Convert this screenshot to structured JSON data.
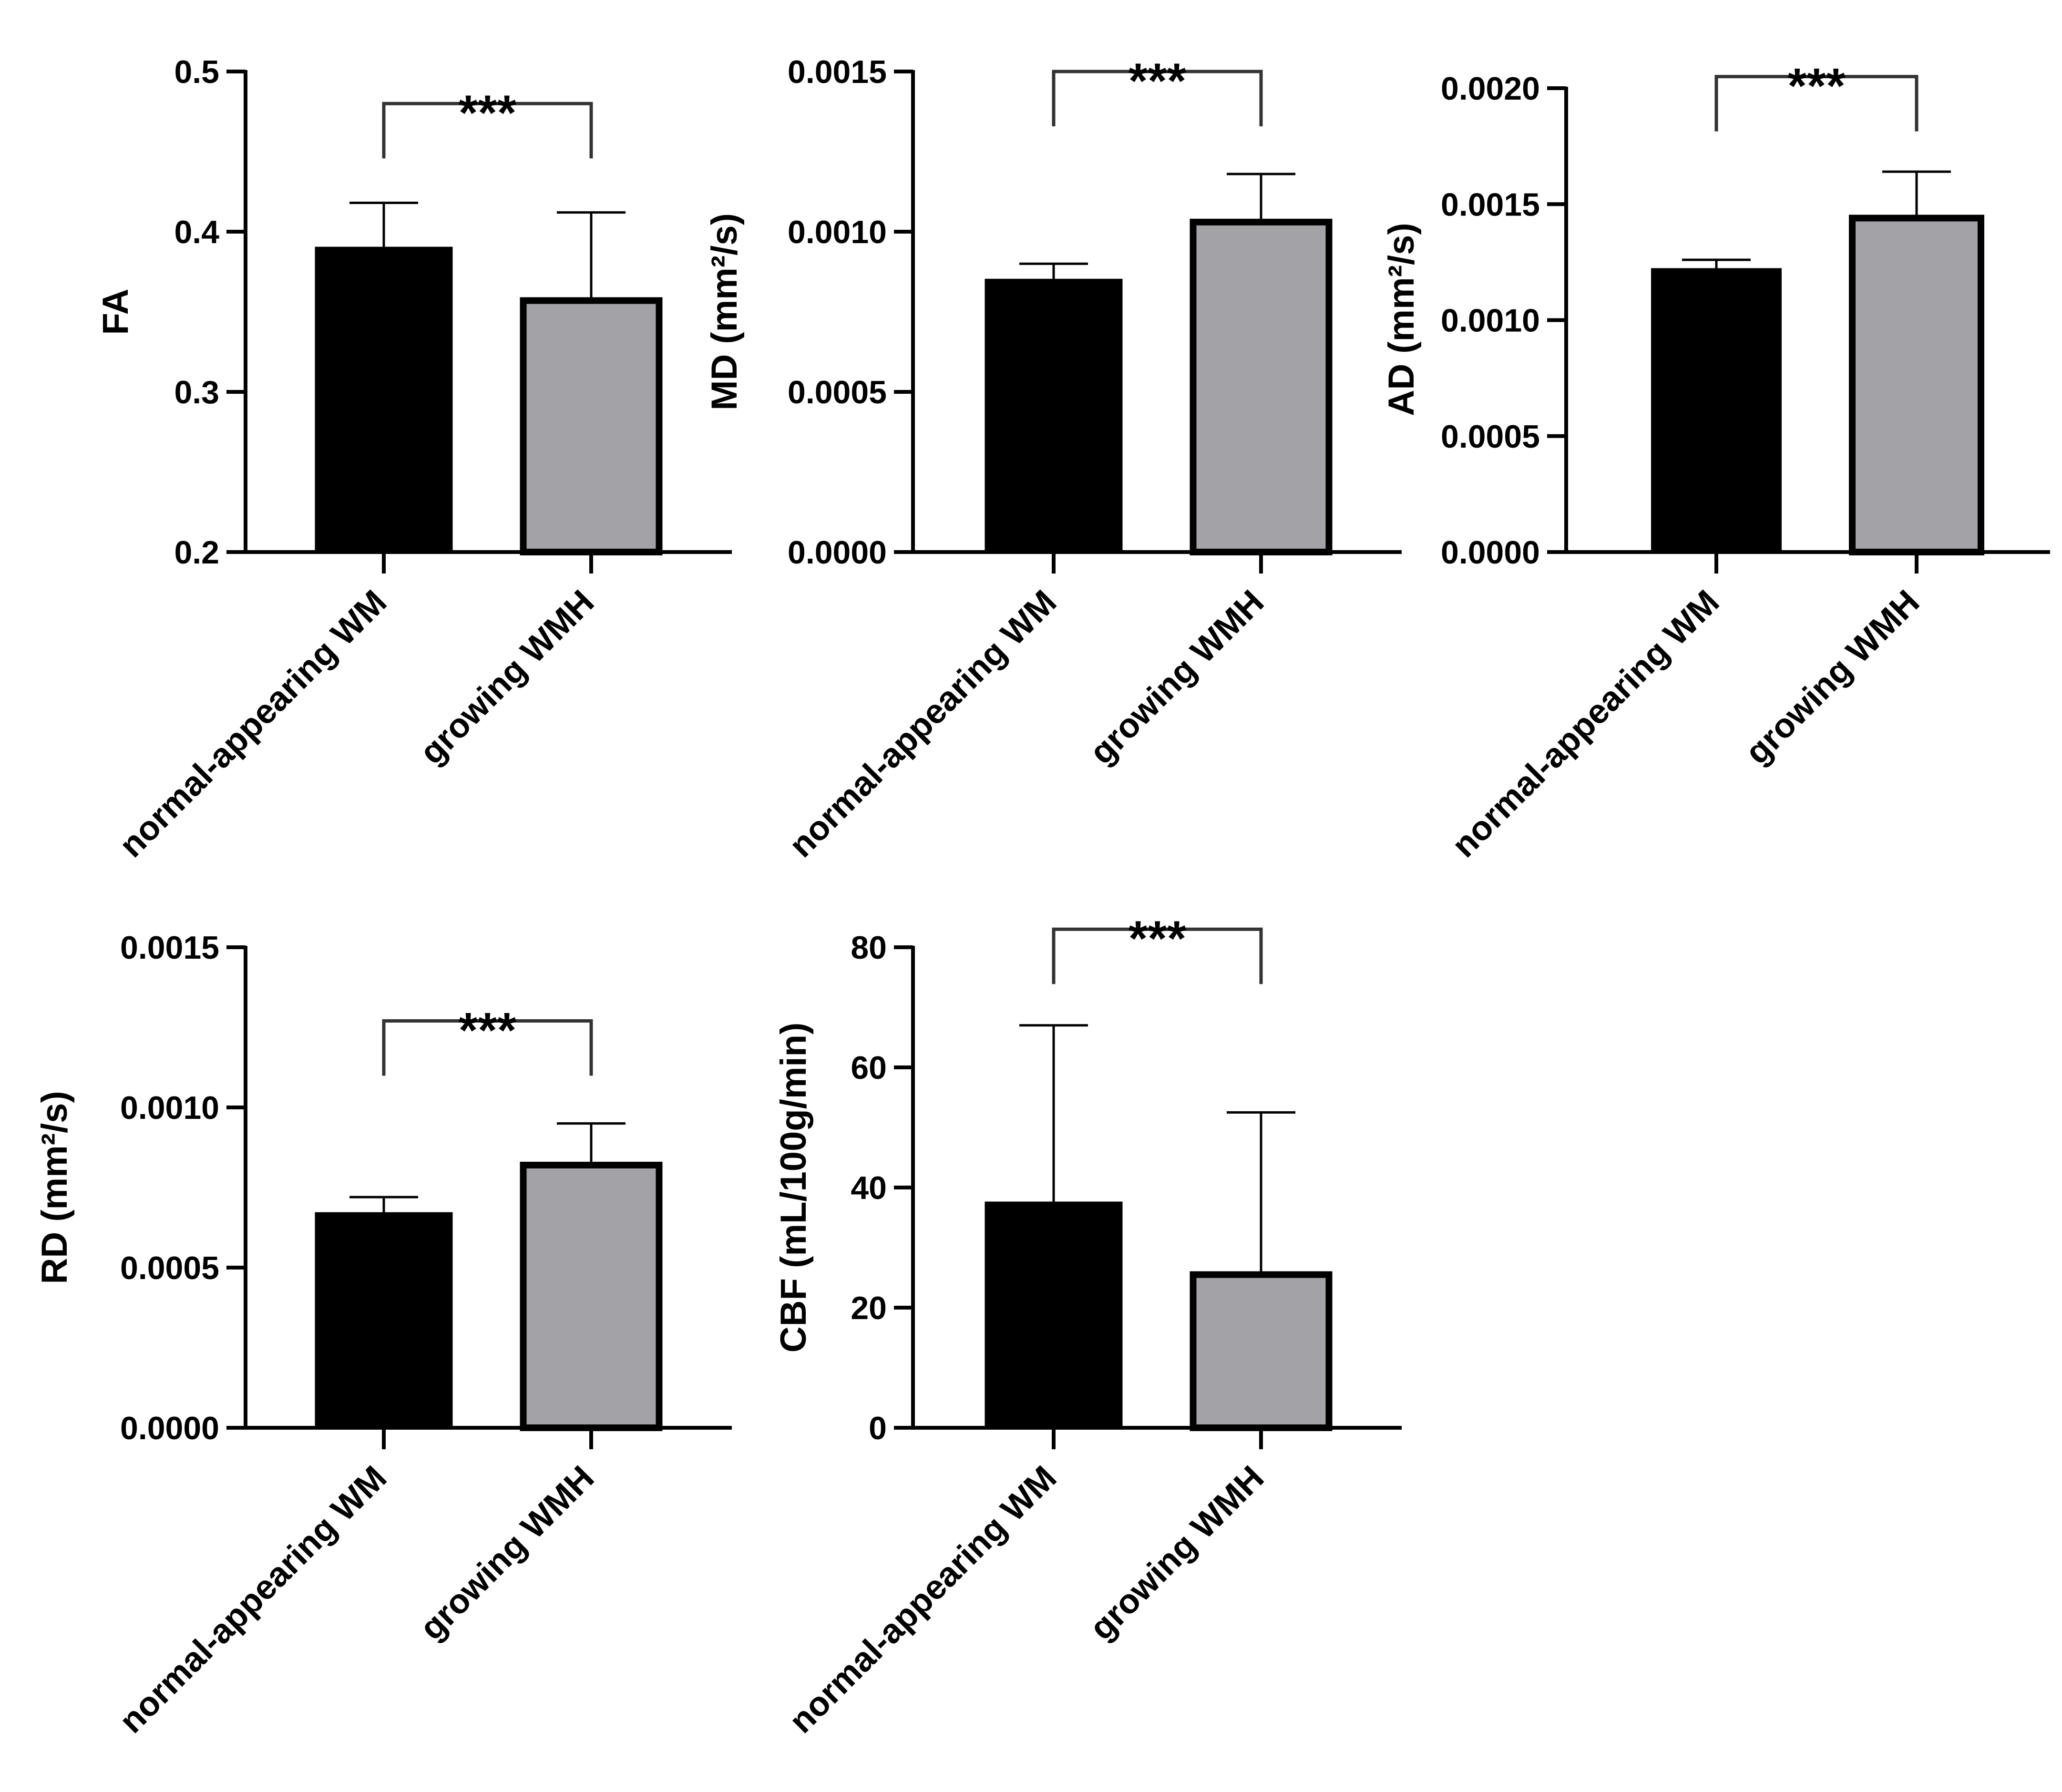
{
  "chart_data": [
    {
      "id": "fa",
      "type": "bar",
      "ylabel": "FA",
      "ylim": [
        0.2,
        0.5
      ],
      "yticks": [
        0.2,
        0.3,
        0.4,
        0.5
      ],
      "ytick_labels": [
        "0.2",
        "0.3",
        "0.4",
        "0.5"
      ],
      "categories": [
        "normal-appearing WM",
        "growing WMH"
      ],
      "values": [
        0.39,
        0.357
      ],
      "errors": [
        0.028,
        0.055
      ],
      "colors": [
        "#000000",
        "#a2a2a7"
      ],
      "bracket_y": 0.48,
      "significance": "***"
    },
    {
      "id": "md",
      "type": "bar",
      "ylabel": "MD (mm²/s)",
      "ylim": [
        0,
        0.0015
      ],
      "yticks": [
        0,
        0.0005,
        0.001,
        0.0015
      ],
      "ytick_labels": [
        "0.0000",
        "0.0005",
        "0.0010",
        "0.0015"
      ],
      "categories": [
        "normal-appearing WM",
        "growing WMH"
      ],
      "values": [
        0.00085,
        0.00103
      ],
      "errors": [
        5e-05,
        0.00015
      ],
      "colors": [
        "#000000",
        "#a2a2a7"
      ],
      "bracket_y": 0.0015,
      "significance": "***"
    },
    {
      "id": "ad",
      "type": "bar",
      "ylabel": "AD (mm²/s)",
      "ylim": [
        0,
        0.002
      ],
      "yticks": [
        0,
        0.0005,
        0.001,
        0.0015,
        0.002
      ],
      "ytick_labels": [
        "0.0000",
        "0.0005",
        "0.0010",
        "0.0015",
        "0.0020"
      ],
      "categories": [
        "normal-appearing WM",
        "growing WMH"
      ],
      "values": [
        0.00122,
        0.00144
      ],
      "errors": [
        4e-05,
        0.0002
      ],
      "colors": [
        "#000000",
        "#a2a2a7"
      ],
      "bracket_y": 0.00205,
      "significance": "***"
    },
    {
      "id": "rd",
      "type": "bar",
      "ylabel": "RD (mm²/s)",
      "ylim": [
        0,
        0.0015
      ],
      "yticks": [
        0,
        0.0005,
        0.001,
        0.0015
      ],
      "ytick_labels": [
        "0.0000",
        "0.0005",
        "0.0010",
        "0.0015"
      ],
      "categories": [
        "normal-appearing WM",
        "growing WMH"
      ],
      "values": [
        0.00067,
        0.00082
      ],
      "errors": [
        5e-05,
        0.00013
      ],
      "colors": [
        "#000000",
        "#a2a2a7"
      ],
      "bracket_y": 0.00127,
      "significance": "***"
    },
    {
      "id": "cbf",
      "type": "bar",
      "ylabel": "CBF (mL/100g/min)",
      "ylim": [
        0,
        80
      ],
      "yticks": [
        0,
        20,
        40,
        60,
        80
      ],
      "ytick_labels": [
        "0",
        "20",
        "40",
        "60",
        "80"
      ],
      "categories": [
        "normal-appearing WM",
        "growing WMH"
      ],
      "values": [
        37.5,
        25.5
      ],
      "errors": [
        29.5,
        27
      ],
      "colors": [
        "#000000",
        "#a2a2a7"
      ],
      "bracket_y": 83,
      "significance": "***"
    }
  ]
}
